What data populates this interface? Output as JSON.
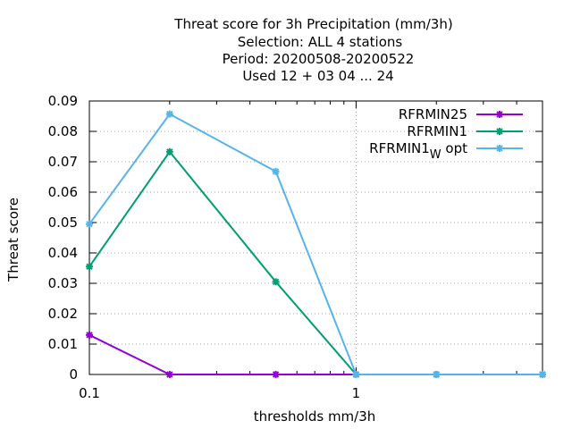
{
  "chart_data": {
    "type": "line",
    "title_lines": [
      "Threat score  for 3h Precipitation (mm/3h)",
      "Selection: ALL      4 stations",
      "Period: 20200508-20200522",
      "Used  12 + 03 04 ... 24"
    ],
    "xlabel": "thresholds mm/3h",
    "ylabel": "Threat score",
    "x_scale": "log",
    "xlim": [
      0.1,
      5
    ],
    "ylim": [
      0,
      0.09
    ],
    "x_ticks": [
      {
        "value": 0.1,
        "label": "0.1"
      },
      {
        "value": 1,
        "label": "1"
      }
    ],
    "x_minor_ticks": [
      0.2,
      0.3,
      0.4,
      0.5,
      0.6,
      0.7,
      0.8,
      0.9,
      2,
      3,
      4,
      5
    ],
    "y_ticks": [
      {
        "value": 0,
        "label": "0"
      },
      {
        "value": 0.01,
        "label": "0.01"
      },
      {
        "value": 0.02,
        "label": "0.02"
      },
      {
        "value": 0.03,
        "label": "0.03"
      },
      {
        "value": 0.04,
        "label": "0.04"
      },
      {
        "value": 0.05,
        "label": "0.05"
      },
      {
        "value": 0.06,
        "label": "0.06"
      },
      {
        "value": 0.07,
        "label": "0.07"
      },
      {
        "value": 0.08,
        "label": "0.08"
      },
      {
        "value": 0.09,
        "label": "0.09"
      }
    ],
    "grid": true,
    "legend_position": "top-right",
    "x": [
      0.1,
      0.2,
      0.5,
      1,
      2,
      5
    ],
    "series": [
      {
        "name": "RFRMIN25",
        "label_main": "RFRMIN25",
        "label_sub": "",
        "label_tail": "",
        "color": "#9400d3",
        "values": [
          0.013,
          0,
          0,
          0,
          0,
          0
        ]
      },
      {
        "name": "RFRMIN1",
        "label_main": "RFRMIN1",
        "label_sub": "",
        "label_tail": "",
        "color": "#009e73",
        "values": [
          0.0355,
          0.0733,
          0.0305,
          0,
          0,
          0
        ]
      },
      {
        "name": "RFRMIN1_w opt",
        "label_main": "RFRMIN1",
        "label_sub": "W",
        "label_tail": "opt",
        "color": "#56b4e9",
        "values": [
          0.0495,
          0.0857,
          0.0668,
          0,
          0,
          0
        ]
      }
    ]
  }
}
